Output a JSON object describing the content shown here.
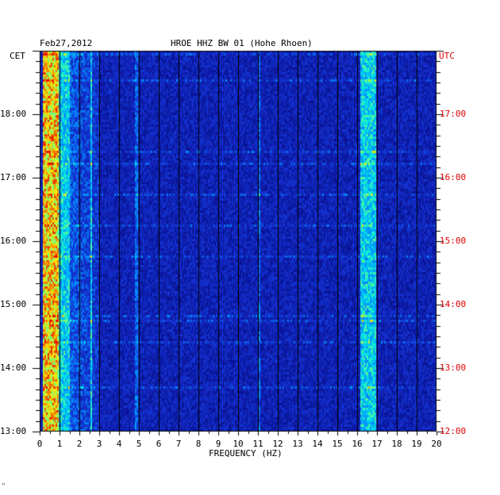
{
  "header": {
    "date": "Feb27,2012",
    "station": "HROE HHZ BW 01 (Hohe Rhoen)"
  },
  "corner_mark": "ⁿ",
  "chart_data": {
    "type": "heatmap",
    "title": "HROE HHZ BW 01 (Hohe Rhoen)",
    "xlabel": "FREQUENCY (HZ)",
    "left_axis_label": "CET",
    "right_axis_label": "UTC",
    "x_range": [
      0,
      20
    ],
    "x_ticks": [
      "0",
      "1",
      "2",
      "3",
      "4",
      "5",
      "6",
      "7",
      "8",
      "9",
      "10",
      "11",
      "12",
      "13",
      "14",
      "15",
      "16",
      "17",
      "18",
      "19",
      "20"
    ],
    "cet_ticks": [
      {
        "label": "18:00",
        "hours_from_bottom": 5
      },
      {
        "label": "17:00",
        "hours_from_bottom": 4
      },
      {
        "label": "16:00",
        "hours_from_bottom": 3
      },
      {
        "label": "15:00",
        "hours_from_bottom": 2
      },
      {
        "label": "14:00",
        "hours_from_bottom": 1
      },
      {
        "label": "13:00",
        "hours_from_bottom": 0
      }
    ],
    "utc_ticks": [
      {
        "label": "17:00",
        "hours_from_bottom": 5
      },
      {
        "label": "16:00",
        "hours_from_bottom": 4
      },
      {
        "label": "15:00",
        "hours_from_bottom": 3
      },
      {
        "label": "14:00",
        "hours_from_bottom": 2
      },
      {
        "label": "13:00",
        "hours_from_bottom": 1
      },
      {
        "label": "12:00",
        "hours_from_bottom": 0
      }
    ],
    "time_span_hours": 6,
    "strong_bands_hz": [
      {
        "from": 0.1,
        "to": 0.9,
        "level": "high"
      },
      {
        "from": 0.9,
        "to": 1.5,
        "level": "medium"
      },
      {
        "from": 2.5,
        "to": 2.6,
        "level": "medium"
      },
      {
        "from": 16.1,
        "to": 16.9,
        "level": "medium"
      },
      {
        "from": 4.8,
        "to": 4.95,
        "level": "low"
      },
      {
        "from": 11.0,
        "to": 11.1,
        "level": "low"
      }
    ],
    "colors": {
      "background": "#0a1aa0",
      "low": "#1533c8",
      "medium": "#00c8ff",
      "high": "#e01000",
      "axis_text": "#000000",
      "utc_text": "#e00000"
    }
  }
}
